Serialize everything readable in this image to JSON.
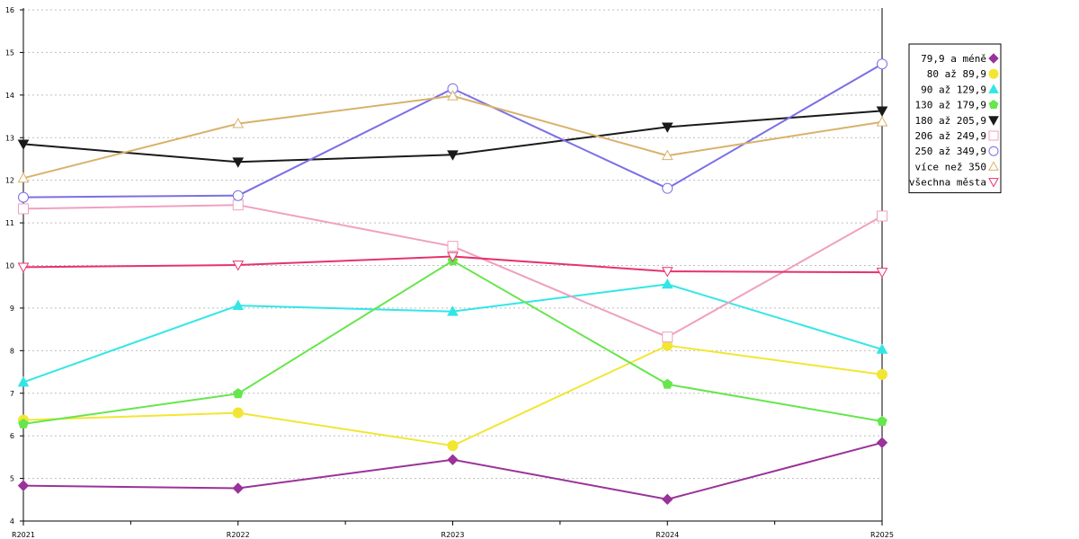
{
  "chart_data": {
    "type": "line",
    "categories": [
      "R2021",
      "R2022",
      "R2023",
      "R2024",
      "R2025"
    ],
    "ylim": [
      4,
      16
    ],
    "yticks": [
      "4",
      "5",
      "6",
      "7",
      "8",
      "9",
      "10",
      "11",
      "12",
      "13",
      "14",
      "15",
      "16"
    ],
    "grid": true,
    "legend_position": "right",
    "series": [
      {
        "name": "79,9 a méně",
        "color": "#993399",
        "marker": "diamond",
        "values": [
          4.83,
          4.77,
          5.44,
          4.51,
          5.84
        ]
      },
      {
        "name": "80 až 89,9",
        "color": "#f2e632",
        "marker": "circle",
        "values": [
          6.37,
          6.54,
          5.77,
          8.12,
          7.44
        ]
      },
      {
        "name": "90 až 129,9",
        "color": "#33e6e6",
        "marker": "triangle-up",
        "values": [
          7.26,
          9.06,
          8.92,
          9.56,
          8.03
        ]
      },
      {
        "name": "130 až 179,9",
        "color": "#66e64d",
        "marker": "pentagon",
        "values": [
          6.28,
          6.99,
          10.11,
          7.21,
          6.34
        ]
      },
      {
        "name": "180 až 205,9",
        "color": "#1a1a1a",
        "marker": "triangle-down",
        "values": [
          12.85,
          12.43,
          12.6,
          13.25,
          13.63
        ]
      },
      {
        "name": "206 až 249,9",
        "color": "#f0a0c0",
        "marker": "square-open",
        "values": [
          11.33,
          11.42,
          10.45,
          8.32,
          11.16
        ]
      },
      {
        "name": "250 až 349,9",
        "color": "#7b6fe6",
        "marker": "circle-open",
        "values": [
          11.6,
          11.64,
          14.15,
          11.81,
          14.73
        ]
      },
      {
        "name": "více než 350",
        "color": "#d9b16a",
        "marker": "triangle-up-open",
        "values": [
          12.05,
          13.33,
          13.98,
          12.58,
          13.37
        ]
      },
      {
        "name": "všechna města",
        "color": "#e6336b",
        "marker": "triangle-down-open",
        "values": [
          9.96,
          10.01,
          10.21,
          9.86,
          9.84
        ]
      }
    ]
  }
}
